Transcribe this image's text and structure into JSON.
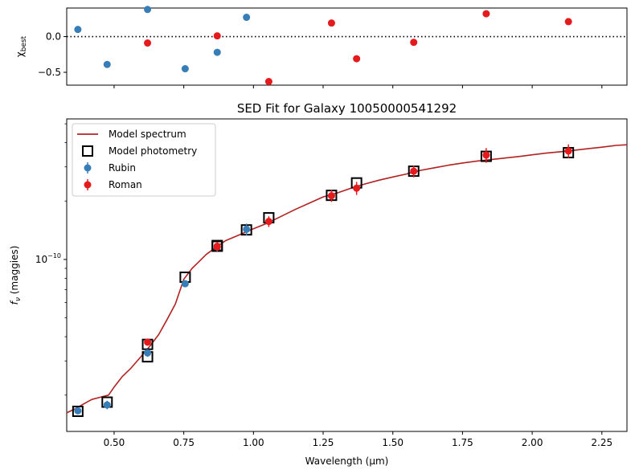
{
  "chart_data": [
    {
      "type": "scatter",
      "panel": "residuals",
      "ylabel_main": "χ",
      "ylabel_sub": "best",
      "xlim": [
        0.33,
        2.34
      ],
      "ylim": [
        -0.68,
        0.4
      ],
      "yticks": [
        0.0,
        -0.5
      ],
      "ytick_labels": [
        "0.0",
        "−0.5"
      ],
      "reference_line": 0.0,
      "series": [
        {
          "name": "Rubin",
          "color": "#377eb8",
          "x": [
            0.37,
            0.475,
            0.62,
            0.755,
            0.87,
            0.975
          ],
          "y": [
            0.1,
            -0.39,
            0.38,
            -0.45,
            -0.22,
            0.27
          ]
        },
        {
          "name": "Roman",
          "color": "#e41a1c",
          "x": [
            0.62,
            0.87,
            1.055,
            1.28,
            1.37,
            1.575,
            1.835,
            2.13
          ],
          "y": [
            -0.09,
            0.01,
            -0.63,
            0.19,
            -0.31,
            -0.08,
            0.32,
            0.21
          ]
        }
      ]
    },
    {
      "type": "line",
      "panel": "sed",
      "title": "SED Fit for Galaxy 10050000541292",
      "xlabel": "Wavelength (μm)",
      "ylabel_main": "f",
      "ylabel_sub": "ν",
      "ylabel_rest": " (maggies)",
      "xlim": [
        0.33,
        2.34
      ],
      "xticks": [
        0.5,
        0.75,
        1.0,
        1.25,
        1.5,
        1.75,
        2.0,
        2.25
      ],
      "xtick_labels": [
        "0.50",
        "0.75",
        "1.00",
        "1.25",
        "1.50",
        "1.75",
        "2.00",
        "2.25"
      ],
      "yscale": "log",
      "ylim": [
        1.3e-11,
        5.3e-10
      ],
      "ytick_value": 1e-10,
      "ytick_base": "10",
      "ytick_exp": "−10",
      "legend_position": "top-left",
      "legend": [
        {
          "label": "Model spectrum",
          "kind": "line",
          "color": "#b22222"
        },
        {
          "label": "Model photometry",
          "kind": "square",
          "color": "#000000"
        },
        {
          "label": "Rubin",
          "kind": "errorbar",
          "color": "#377eb8"
        },
        {
          "label": "Roman",
          "kind": "errorbar",
          "color": "#e41a1c"
        }
      ],
      "model_spectrum": {
        "color": "#b22222",
        "x": [
          0.33,
          0.36,
          0.39,
          0.42,
          0.45,
          0.48,
          0.5,
          0.53,
          0.56,
          0.6,
          0.63,
          0.66,
          0.69,
          0.72,
          0.75,
          0.78,
          0.8,
          0.83,
          0.86,
          0.9,
          0.95,
          1.0,
          1.05,
          1.1,
          1.15,
          1.2,
          1.25,
          1.3,
          1.35,
          1.4,
          1.45,
          1.5,
          1.55,
          1.6,
          1.65,
          1.7,
          1.75,
          1.8,
          1.85,
          1.9,
          1.95,
          2.0,
          2.05,
          2.1,
          2.15,
          2.2,
          2.25,
          2.3,
          2.34
        ],
        "y": [
          1.62e-11,
          1.7e-11,
          1.8e-11,
          1.9e-11,
          1.95e-11,
          2e-11,
          2.2e-11,
          2.5e-11,
          2.75e-11,
          3.2e-11,
          3.6e-11,
          4.1e-11,
          4.9e-11,
          5.9e-11,
          7.9e-11,
          9e-11,
          9.6e-11,
          1.06e-10,
          1.14e-10,
          1.25e-10,
          1.34e-10,
          1.44e-10,
          1.54e-10,
          1.67e-10,
          1.81e-10,
          1.95e-10,
          2.1e-10,
          2.2e-10,
          2.33e-10,
          2.45e-10,
          2.56e-10,
          2.66e-10,
          2.76e-10,
          2.88e-10,
          2.97e-10,
          3.06e-10,
          3.14e-10,
          3.21e-10,
          3.27e-10,
          3.33e-10,
          3.39e-10,
          3.46e-10,
          3.53e-10,
          3.59e-10,
          3.65e-10,
          3.72e-10,
          3.79e-10,
          3.87e-10,
          3.9e-10
        ]
      },
      "model_photometry": {
        "color": "#000000",
        "x": [
          0.37,
          0.475,
          0.62,
          0.62,
          0.755,
          0.87,
          0.87,
          0.975,
          1.055,
          1.28,
          1.37,
          1.575,
          1.835,
          2.13
        ],
        "y": [
          1.65e-11,
          1.84e-11,
          3.15e-11,
          3.65e-11,
          8.1e-11,
          1.17e-10,
          1.18e-10,
          1.42e-10,
          1.64e-10,
          2.14e-10,
          2.48e-10,
          2.85e-10,
          3.4e-10,
          3.55e-10
        ]
      },
      "series": [
        {
          "name": "Rubin",
          "color": "#377eb8",
          "x": [
            0.37,
            0.475,
            0.62,
            0.755,
            0.87,
            0.975
          ],
          "y": [
            1.66e-11,
            1.78e-11,
            3.3e-11,
            7.5e-11,
            1.16e-10,
            1.43e-10
          ],
          "err": [
            6e-13,
            9e-13,
            1.5e-12,
            3e-12,
            6e-12,
            1e-11
          ]
        },
        {
          "name": "Roman",
          "color": "#e41a1c",
          "x": [
            0.62,
            0.87,
            0.87,
            1.055,
            1.28,
            1.37,
            1.575,
            1.835,
            2.13
          ],
          "y": [
            3.75e-11,
            1.17e-10,
            1.16e-10,
            1.57e-10,
            2.13e-10,
            2.33e-10,
            2.85e-10,
            3.45e-10,
            3.62e-10
          ],
          "err": [
            1.5e-12,
            6e-12,
            5e-12,
            1e-11,
            1.5e-11,
            1.8e-11,
            2e-11,
            3e-11,
            3e-11
          ]
        }
      ]
    }
  ]
}
